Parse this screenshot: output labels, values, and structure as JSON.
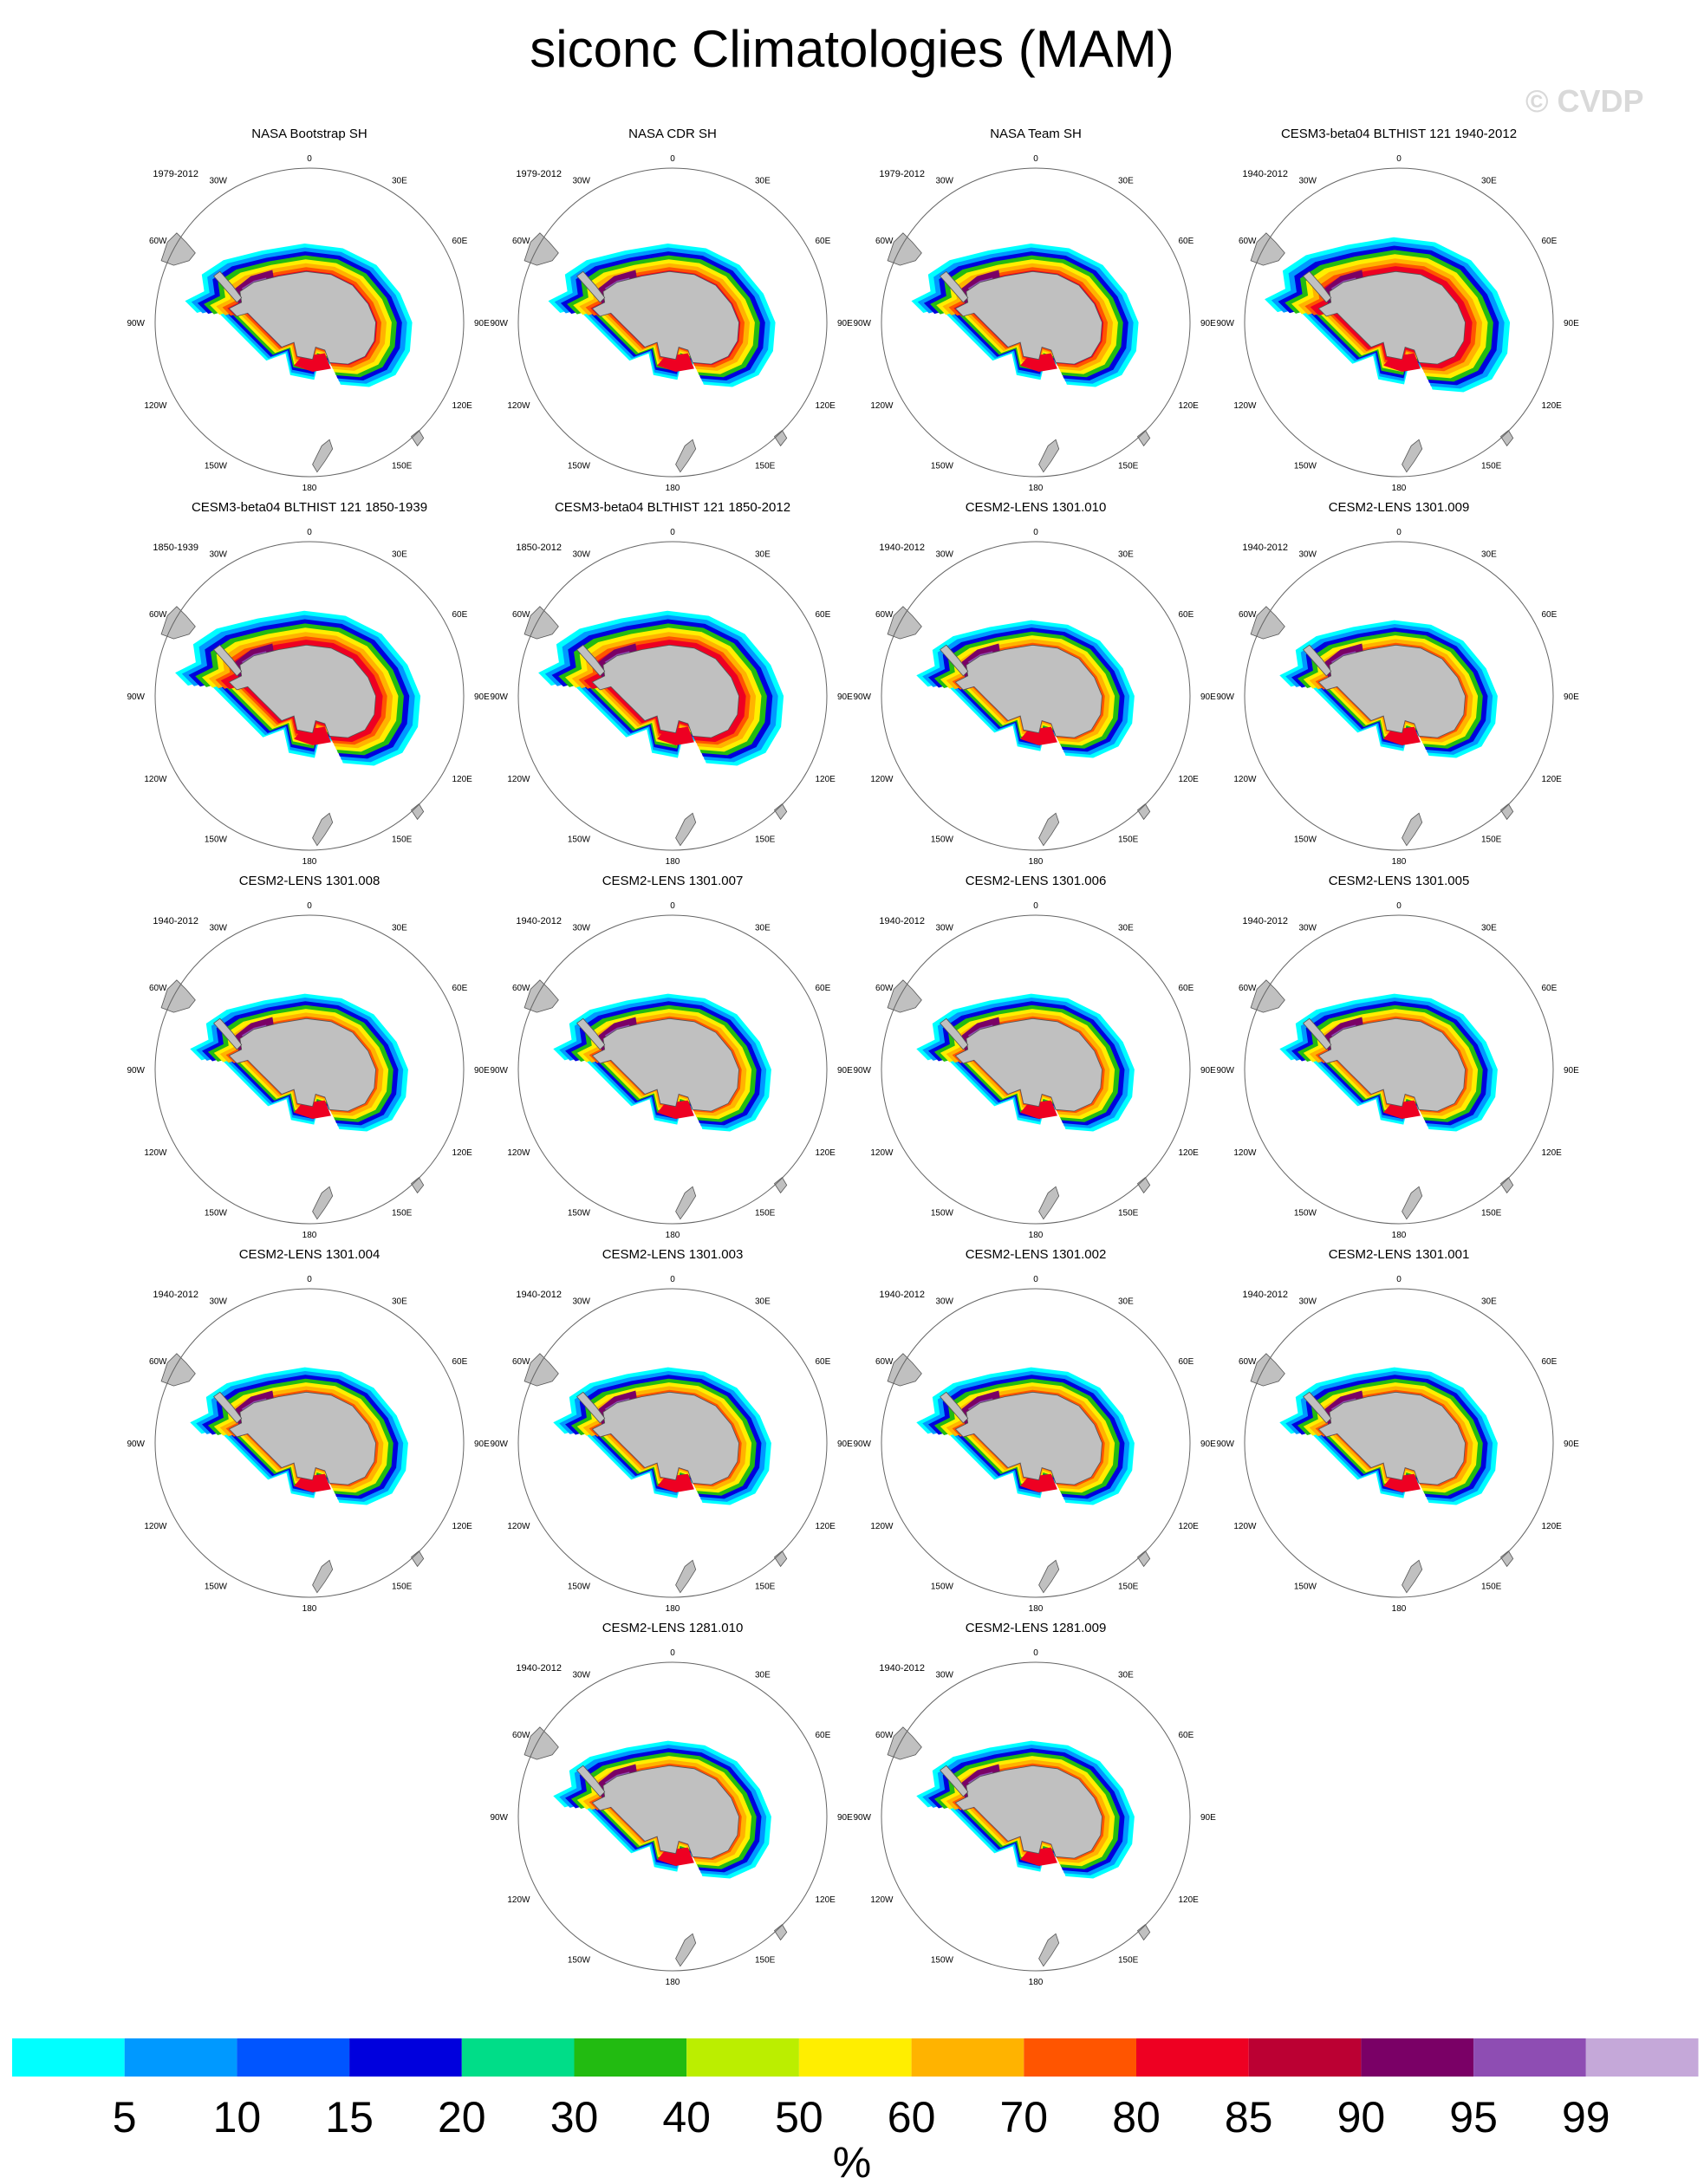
{
  "title": "siconc Climatologies (MAM)",
  "watermark": "© CVDP",
  "longitude_labels": [
    "0",
    "30E",
    "60E",
    "90E",
    "120E",
    "150E",
    "180",
    "150W",
    "120W",
    "90W",
    "60W",
    "30W"
  ],
  "panels": [
    {
      "title": "NASA Bootstrap SH",
      "years": "1979-2012",
      "style": "obs"
    },
    {
      "title": "NASA CDR SH",
      "years": "1979-2012",
      "style": "obs"
    },
    {
      "title": "NASA Team SH",
      "years": "1979-2012",
      "style": "obs"
    },
    {
      "title": "CESM3-beta04 BLTHIST 121 1940-2012",
      "years": "1940-2012",
      "style": "cesm3"
    },
    {
      "title": "CESM3-beta04 BLTHIST 121 1850-1939",
      "years": "1850-1939",
      "style": "cesm3"
    },
    {
      "title": "CESM3-beta04 BLTHIST 121 1850-2012",
      "years": "1850-2012",
      "style": "cesm3"
    },
    {
      "title": "CESM2-LENS 1301.010",
      "years": "1940-2012",
      "style": "cesm2"
    },
    {
      "title": "CESM2-LENS 1301.009",
      "years": "1940-2012",
      "style": "cesm2"
    },
    {
      "title": "CESM2-LENS 1301.008",
      "years": "1940-2012",
      "style": "cesm2"
    },
    {
      "title": "CESM2-LENS 1301.007",
      "years": "1940-2012",
      "style": "cesm2"
    },
    {
      "title": "CESM2-LENS 1301.006",
      "years": "1940-2012",
      "style": "cesm2"
    },
    {
      "title": "CESM2-LENS 1301.005",
      "years": "1940-2012",
      "style": "cesm2"
    },
    {
      "title": "CESM2-LENS 1301.004",
      "years": "1940-2012",
      "style": "cesm2"
    },
    {
      "title": "CESM2-LENS 1301.003",
      "years": "1940-2012",
      "style": "cesm2"
    },
    {
      "title": "CESM2-LENS 1301.002",
      "years": "1940-2012",
      "style": "cesm2"
    },
    {
      "title": "CESM2-LENS 1301.001",
      "years": "1940-2012",
      "style": "cesm2"
    },
    {
      "title": "CESM2-LENS 1281.010",
      "years": "1940-2012",
      "style": "cesm2"
    },
    {
      "title": "CESM2-LENS 1281.009",
      "years": "1940-2012",
      "style": "cesm2"
    }
  ],
  "colorbar": {
    "unit": "%",
    "colors": [
      "#00ffff",
      "#0099ff",
      "#0055ff",
      "#0000dd",
      "#00dd88",
      "#22bb11",
      "#bbee00",
      "#ffee00",
      "#ffb300",
      "#ff5500",
      "#ee0022",
      "#bb0033",
      "#7a0066",
      "#8e4db3",
      "#c5a8d9"
    ],
    "ticks": [
      "5",
      "10",
      "15",
      "20",
      "30",
      "40",
      "50",
      "60",
      "70",
      "80",
      "85",
      "90",
      "95",
      "99"
    ]
  },
  "colors": {
    "land": "#c0c0c0",
    "land_outline": "#555555",
    "frame": "#666666"
  }
}
